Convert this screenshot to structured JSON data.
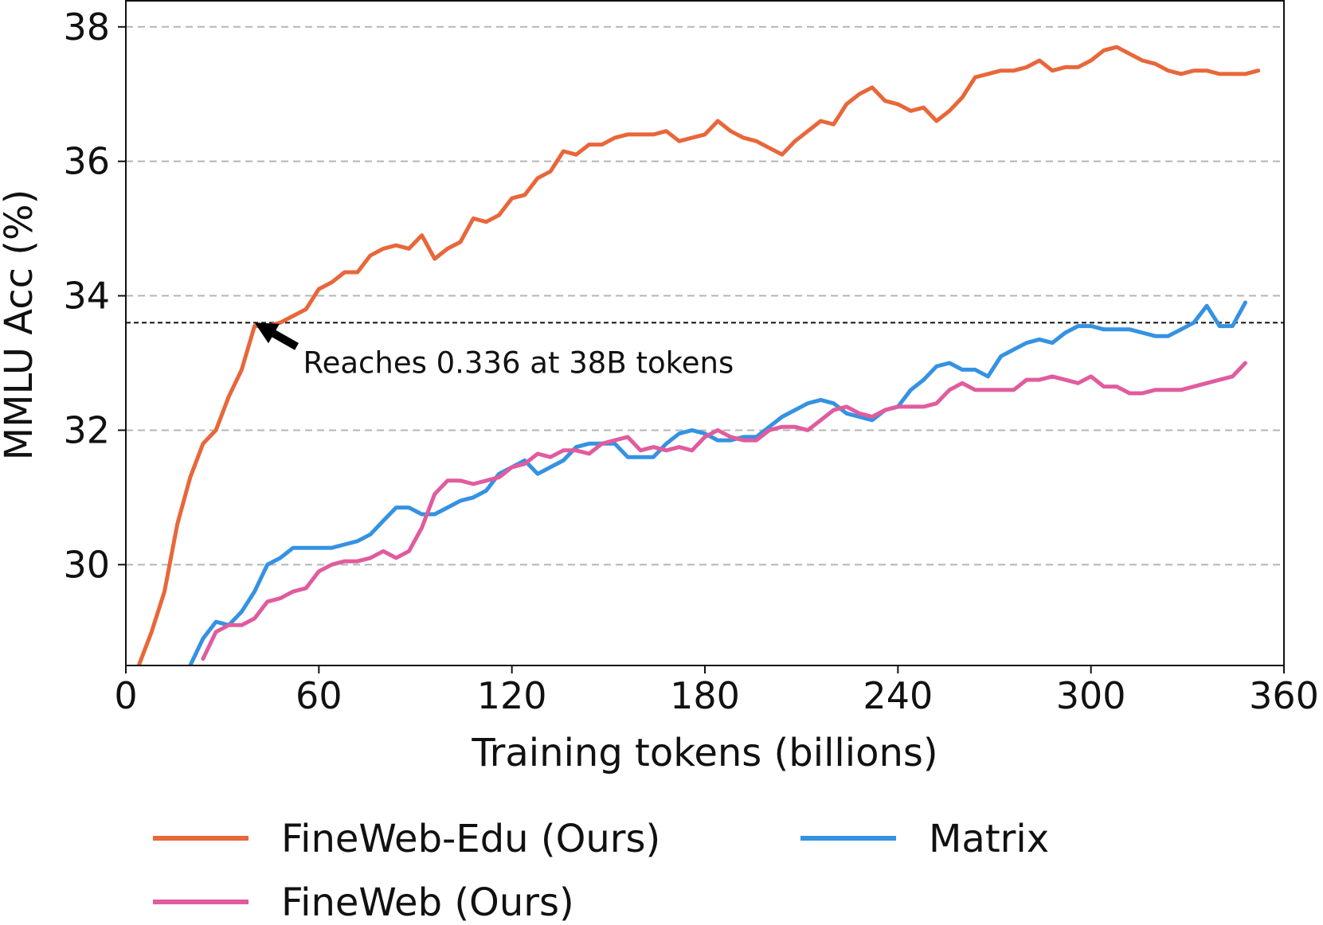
{
  "chart_data": {
    "type": "line",
    "title": "",
    "xlabel": "Training tokens (billions)",
    "ylabel": "MMLU Acc (%)",
    "xlim": [
      0,
      360
    ],
    "ylim": [
      28.5,
      38.4
    ],
    "xticks": [
      "0",
      "60",
      "120",
      "180",
      "240",
      "300",
      "360"
    ],
    "yticks": [
      "30",
      "32",
      "34",
      "36",
      "38"
    ],
    "grid": "horizontal dashed",
    "legend_position": "bottom",
    "reference_line": {
      "y": 33.6,
      "style": "dashed"
    },
    "annotation": {
      "text": "Reaches 0.336 at 38B tokens",
      "x": 40,
      "y": 33.6
    },
    "series": [
      {
        "name": "FineWeb-Edu (Ours)",
        "color": "#e8673a",
        "x": [
          4,
          8,
          12,
          16,
          20,
          24,
          28,
          32,
          36,
          40,
          44,
          48,
          52,
          56,
          60,
          64,
          68,
          72,
          76,
          80,
          84,
          88,
          92,
          96,
          100,
          104,
          108,
          112,
          116,
          120,
          124,
          128,
          132,
          136,
          140,
          144,
          148,
          152,
          156,
          160,
          164,
          168,
          172,
          176,
          180,
          184,
          188,
          192,
          196,
          200,
          204,
          208,
          212,
          216,
          220,
          224,
          228,
          232,
          236,
          240,
          244,
          248,
          252,
          256,
          260,
          264,
          268,
          272,
          276,
          280,
          284,
          288,
          292,
          296,
          300,
          304,
          308,
          312,
          316,
          320,
          324,
          328,
          332,
          336,
          340,
          344,
          348,
          352
        ],
        "values": [
          28.5,
          29.0,
          29.6,
          30.6,
          31.3,
          31.8,
          32.0,
          32.5,
          32.9,
          33.55,
          33.55,
          33.6,
          33.7,
          33.8,
          34.1,
          34.2,
          34.35,
          34.35,
          34.6,
          34.7,
          34.75,
          34.7,
          34.9,
          34.55,
          34.7,
          34.8,
          35.15,
          35.1,
          35.2,
          35.45,
          35.5,
          35.75,
          35.85,
          36.15,
          36.1,
          36.25,
          36.25,
          36.35,
          36.4,
          36.4,
          36.4,
          36.45,
          36.3,
          36.35,
          36.4,
          36.6,
          36.45,
          36.35,
          36.3,
          36.2,
          36.1,
          36.3,
          36.45,
          36.6,
          36.55,
          36.85,
          37.0,
          37.1,
          36.9,
          36.85,
          36.75,
          36.8,
          36.6,
          36.75,
          36.95,
          37.25,
          37.3,
          37.35,
          37.35,
          37.4,
          37.5,
          37.35,
          37.4,
          37.4,
          37.5,
          37.65,
          37.7,
          37.6,
          37.5,
          37.45,
          37.35,
          37.3,
          37.35,
          37.35,
          37.3,
          37.3,
          37.3,
          37.35
        ]
      },
      {
        "name": "Matrix",
        "color": "#3592e2",
        "x": [
          20,
          24,
          28,
          32,
          36,
          40,
          44,
          48,
          52,
          56,
          60,
          64,
          68,
          72,
          76,
          80,
          84,
          88,
          92,
          96,
          100,
          104,
          108,
          112,
          116,
          120,
          124,
          128,
          132,
          136,
          140,
          144,
          148,
          152,
          156,
          160,
          164,
          168,
          172,
          176,
          180,
          184,
          188,
          192,
          196,
          200,
          204,
          208,
          212,
          216,
          220,
          224,
          228,
          232,
          236,
          240,
          244,
          248,
          252,
          256,
          260,
          264,
          268,
          272,
          276,
          280,
          284,
          288,
          292,
          296,
          300,
          304,
          308,
          312,
          316,
          320,
          324,
          328,
          332,
          336,
          340,
          344,
          348
        ],
        "values": [
          28.5,
          28.9,
          29.15,
          29.1,
          29.3,
          29.6,
          30.0,
          30.1,
          30.25,
          30.25,
          30.25,
          30.25,
          30.3,
          30.35,
          30.45,
          30.65,
          30.85,
          30.85,
          30.75,
          30.75,
          30.85,
          30.95,
          31.0,
          31.1,
          31.35,
          31.45,
          31.55,
          31.35,
          31.45,
          31.55,
          31.75,
          31.8,
          31.8,
          31.8,
          31.6,
          31.6,
          31.6,
          31.8,
          31.95,
          32.0,
          31.95,
          31.85,
          31.85,
          31.9,
          31.9,
          32.05,
          32.2,
          32.3,
          32.4,
          32.45,
          32.4,
          32.25,
          32.2,
          32.15,
          32.3,
          32.35,
          32.6,
          32.75,
          32.95,
          33.0,
          32.9,
          32.9,
          32.8,
          33.1,
          33.2,
          33.3,
          33.35,
          33.3,
          33.45,
          33.55,
          33.55,
          33.5,
          33.5,
          33.5,
          33.45,
          33.4,
          33.4,
          33.5,
          33.6,
          33.85,
          33.55,
          33.55,
          33.9
        ]
      },
      {
        "name": "FineWeb (Ours)",
        "color": "#e05c9e",
        "x": [
          24,
          28,
          32,
          36,
          40,
          44,
          48,
          52,
          56,
          60,
          64,
          68,
          72,
          76,
          80,
          84,
          88,
          92,
          96,
          100,
          104,
          108,
          112,
          116,
          120,
          124,
          128,
          132,
          136,
          140,
          144,
          148,
          152,
          156,
          160,
          164,
          168,
          172,
          176,
          180,
          184,
          188,
          192,
          196,
          200,
          204,
          208,
          212,
          216,
          220,
          224,
          228,
          232,
          236,
          240,
          244,
          248,
          252,
          256,
          260,
          264,
          268,
          272,
          276,
          280,
          284,
          288,
          292,
          296,
          300,
          304,
          308,
          312,
          316,
          320,
          324,
          328,
          332,
          336,
          340,
          344,
          348
        ],
        "values": [
          28.6,
          29.0,
          29.1,
          29.1,
          29.2,
          29.45,
          29.5,
          29.6,
          29.65,
          29.9,
          30.0,
          30.05,
          30.05,
          30.1,
          30.2,
          30.1,
          30.2,
          30.55,
          31.05,
          31.25,
          31.25,
          31.2,
          31.25,
          31.3,
          31.45,
          31.5,
          31.65,
          31.6,
          31.7,
          31.7,
          31.65,
          31.8,
          31.85,
          31.9,
          31.7,
          31.75,
          31.7,
          31.75,
          31.7,
          31.9,
          32.0,
          31.9,
          31.85,
          31.85,
          32.0,
          32.05,
          32.05,
          32.0,
          32.15,
          32.3,
          32.35,
          32.25,
          32.2,
          32.3,
          32.35,
          32.35,
          32.35,
          32.4,
          32.6,
          32.7,
          32.6,
          32.6,
          32.6,
          32.6,
          32.75,
          32.75,
          32.8,
          32.75,
          32.7,
          32.8,
          32.65,
          32.65,
          32.55,
          32.55,
          32.6,
          32.6,
          32.6,
          32.65,
          32.7,
          32.75,
          32.8,
          33.0
        ]
      }
    ]
  }
}
